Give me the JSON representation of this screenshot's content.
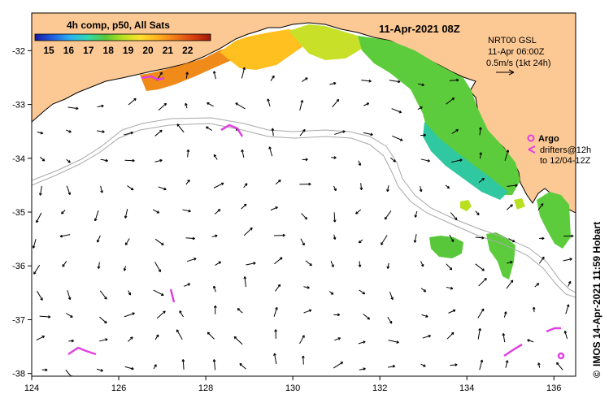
{
  "map": {
    "title": "11-Apr-2021 08Z",
    "colorbar": {
      "title": "4h comp, p50, All Sats",
      "ticks": [
        "15",
        "16",
        "17",
        "18",
        "19",
        "20",
        "21",
        "22"
      ],
      "colors": [
        "#1a1aa0",
        "#1f5fe0",
        "#2ab0f0",
        "#30d8b0",
        "#58c83a",
        "#b8e020",
        "#ffe030",
        "#ffb020",
        "#f07818",
        "#d84010",
        "#a01808"
      ]
    },
    "currents_legend": {
      "line1": "NRT00 GSL",
      "line2": "11-Apr 06:00Z",
      "line3": "0.5m/s (1kt 24h)"
    },
    "argo_legend": {
      "label": "Argo",
      "line2": "drifters@12h",
      "line3": "to 12/04-12Z"
    },
    "credit": "IMOS 14-Apr-2021 11:59 Hobart",
    "credit_symbol": "©",
    "longitude_ticks": [
      "124",
      "126",
      "128",
      "130",
      "132",
      "134",
      "136"
    ],
    "latitude_ticks": [
      "-32",
      "-33",
      "-34",
      "-35",
      "-36",
      "-37",
      "-38"
    ],
    "colors": {
      "land": "#fcc894",
      "sea": "#ffffff",
      "argo": "#e040e0",
      "shelf_line": "#a8a8a8"
    },
    "extent": {
      "lon_min": 124,
      "lon_max": 136.5,
      "lat_min": -38.05,
      "lat_max": -31.3
    }
  }
}
